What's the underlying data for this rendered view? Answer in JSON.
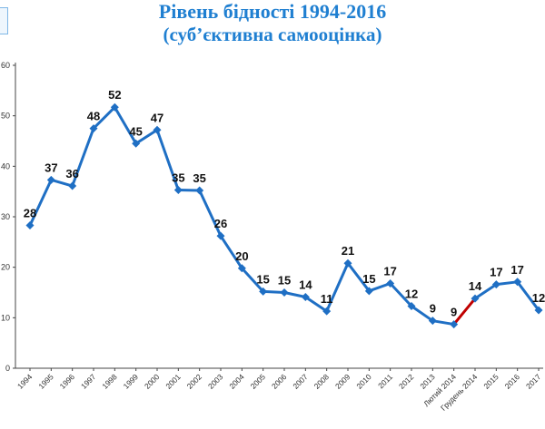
{
  "title": "Рівень бідності 1994-2016",
  "subtitle": "(суб’єктивна самооцінка)",
  "colors": {
    "title": "#1f7fd1",
    "line": "#1f6fc4",
    "highlight": "#c00000",
    "axis": "#444444"
  },
  "chart_data": {
    "type": "line",
    "title": "Рівень бідності 1994-2016",
    "subtitle": "(суб’єктивна самооцінка)",
    "xlabel": "",
    "ylabel": "",
    "ylim": [
      0,
      60
    ],
    "yticks": [
      0,
      10,
      20,
      30,
      40,
      50,
      60
    ],
    "grid": false,
    "categories": [
      "1994",
      "1995",
      "1996",
      "1997",
      "1998",
      "1999",
      "2000",
      "2001",
      "2002",
      "2003",
      "2004",
      "2005",
      "2006",
      "2007",
      "2008",
      "2009",
      "2010",
      "2011",
      "2012",
      "2013",
      "Лютий 2014",
      "Грудень 2014",
      "2015",
      "2016",
      "2017"
    ],
    "values": [
      28.3,
      37.3,
      36.1,
      47.5,
      51.7,
      44.5,
      47.2,
      35.3,
      35.2,
      26.2,
      19.8,
      15.2,
      15.0,
      14.1,
      11.3,
      20.8,
      15.3,
      16.8,
      12.3,
      9.4,
      8.7,
      13.8,
      16.6,
      17.1,
      11.5
    ],
    "labels": [
      "28",
      "37",
      "36",
      "48",
      "52",
      "45",
      "47",
      "35",
      "35",
      "26",
      "20",
      "15",
      "15",
      "14",
      "11",
      "21",
      "15",
      "17",
      "12",
      "9",
      "9",
      "14",
      "17",
      "17",
      "12"
    ],
    "highlight_segment": [
      "Лютий 2014",
      "Грудень 2014"
    ]
  }
}
